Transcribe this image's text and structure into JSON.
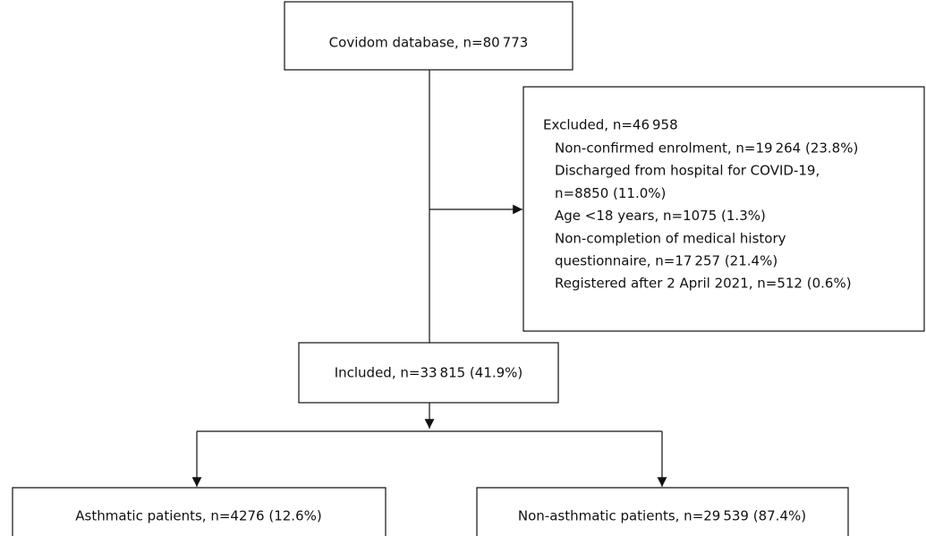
{
  "nodes": {
    "database": {
      "label": "Covidom database, n=80 773"
    },
    "excluded": {
      "title": "Excluded, n=46 958",
      "lines": [
        "Non-confirmed enrolment, n=19 264 (23.8%)",
        "Discharged from hospital for COVID-19,",
        "n=8850 (11.0%)",
        "Age <18 years, n=1075 (1.3%)",
        "Non-completion of medical history",
        "questionnaire, n=17 257 (21.4%)",
        "Registered after 2 April 2021, n=512 (0.6%)"
      ]
    },
    "included": {
      "label": "Included, n=33 815 (41.9%)"
    },
    "asthmatic": {
      "label": "Asthmatic patients, n=4276 (12.6%)"
    },
    "non_asthmatic": {
      "label": "Non-asthmatic patients, n=29 539 (87.4%)"
    }
  }
}
